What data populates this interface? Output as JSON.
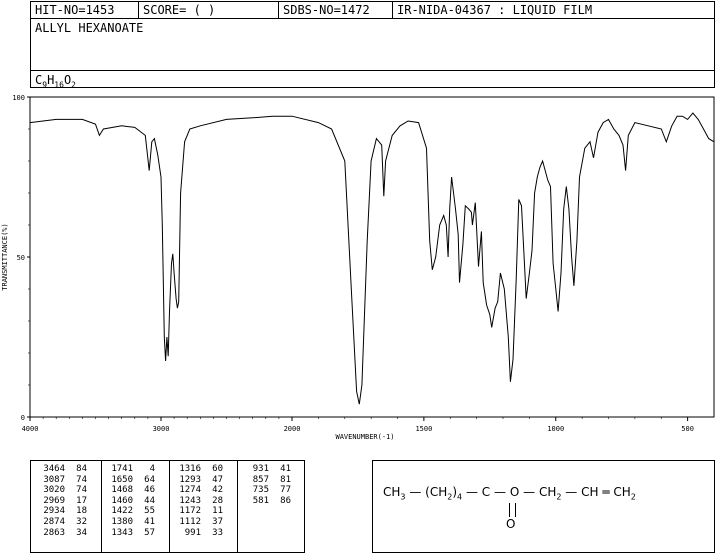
{
  "header": {
    "hit_no": "HIT-NO=1453",
    "score": "SCORE=  (   )",
    "sdbs_no": "SDBS-NO=1472",
    "ir_id": "IR-NIDA-04367 : LIQUID FILM",
    "compound_name": "ALLYL HEXANOATE",
    "formula_base": "C",
    "formula_c": "9",
    "formula_h_label": "H",
    "formula_h": "16",
    "formula_o_label": "O",
    "formula_o": "2"
  },
  "chart_data": {
    "type": "line",
    "xlabel": "WAVENUMBER(-1)",
    "ylabel": "TRANSMITTANCE(%)",
    "xlim": [
      4000,
      400
    ],
    "ylim": [
      0,
      100
    ],
    "x_ticks": [
      "4000",
      "3000",
      "2000",
      "1500",
      "1000",
      "500"
    ],
    "y_ticks": [
      "0",
      "50",
      "100"
    ],
    "series": [
      {
        "points": [
          [
            4000,
            92
          ],
          [
            3800,
            93
          ],
          [
            3600,
            93
          ],
          [
            3500,
            91.5
          ],
          [
            3470,
            88
          ],
          [
            3440,
            90
          ],
          [
            3300,
            91
          ],
          [
            3200,
            90.5
          ],
          [
            3120,
            88
          ],
          [
            3090,
            77
          ],
          [
            3070,
            86
          ],
          [
            3050,
            87
          ],
          [
            3025,
            82
          ],
          [
            3000,
            75
          ],
          [
            2990,
            60
          ],
          [
            2975,
            25
          ],
          [
            2965,
            17.5
          ],
          [
            2955,
            25
          ],
          [
            2945,
            19
          ],
          [
            2935,
            33
          ],
          [
            2920,
            48
          ],
          [
            2910,
            51
          ],
          [
            2900,
            45
          ],
          [
            2885,
            37
          ],
          [
            2875,
            34
          ],
          [
            2865,
            36
          ],
          [
            2850,
            70
          ],
          [
            2820,
            86
          ],
          [
            2780,
            90
          ],
          [
            2700,
            91
          ],
          [
            2500,
            93
          ],
          [
            2300,
            93.5
          ],
          [
            2150,
            94
          ],
          [
            2000,
            94
          ],
          [
            1900,
            92
          ],
          [
            1850,
            90
          ],
          [
            1800,
            80
          ],
          [
            1775,
            40
          ],
          [
            1755,
            8
          ],
          [
            1745,
            4
          ],
          [
            1735,
            10
          ],
          [
            1715,
            55
          ],
          [
            1700,
            80
          ],
          [
            1680,
            87
          ],
          [
            1660,
            85
          ],
          [
            1652,
            69
          ],
          [
            1645,
            80
          ],
          [
            1620,
            88
          ],
          [
            1590,
            91
          ],
          [
            1560,
            92.5
          ],
          [
            1520,
            92
          ],
          [
            1490,
            84
          ],
          [
            1478,
            55
          ],
          [
            1468,
            46
          ],
          [
            1455,
            50
          ],
          [
            1440,
            60
          ],
          [
            1425,
            63
          ],
          [
            1415,
            60
          ],
          [
            1408,
            50
          ],
          [
            1402,
            65
          ],
          [
            1395,
            75
          ],
          [
            1380,
            65
          ],
          [
            1370,
            57
          ],
          [
            1365,
            42
          ],
          [
            1352,
            54
          ],
          [
            1343,
            66
          ],
          [
            1330,
            65
          ],
          [
            1320,
            64
          ],
          [
            1316,
            60
          ],
          [
            1305,
            67
          ],
          [
            1293,
            47
          ],
          [
            1282,
            58
          ],
          [
            1275,
            42
          ],
          [
            1262,
            35
          ],
          [
            1250,
            32
          ],
          [
            1243,
            28
          ],
          [
            1230,
            34
          ],
          [
            1220,
            36
          ],
          [
            1210,
            45
          ],
          [
            1195,
            40
          ],
          [
            1180,
            25
          ],
          [
            1172,
            11
          ],
          [
            1162,
            18
          ],
          [
            1150,
            43
          ],
          [
            1140,
            68
          ],
          [
            1130,
            66
          ],
          [
            1118,
            47
          ],
          [
            1112,
            37
          ],
          [
            1100,
            45
          ],
          [
            1090,
            52
          ],
          [
            1080,
            70
          ],
          [
            1070,
            75
          ],
          [
            1060,
            78
          ],
          [
            1050,
            80
          ],
          [
            1040,
            77
          ],
          [
            1030,
            74
          ],
          [
            1020,
            72
          ],
          [
            1010,
            48
          ],
          [
            1000,
            40
          ],
          [
            991,
            33
          ],
          [
            980,
            45
          ],
          [
            970,
            65
          ],
          [
            960,
            72
          ],
          [
            950,
            65
          ],
          [
            940,
            50
          ],
          [
            931,
            41
          ],
          [
            920,
            55
          ],
          [
            910,
            75
          ],
          [
            890,
            84
          ],
          [
            870,
            86
          ],
          [
            857,
            81
          ],
          [
            840,
            89
          ],
          [
            820,
            92
          ],
          [
            800,
            93
          ],
          [
            780,
            90
          ],
          [
            760,
            88
          ],
          [
            745,
            85
          ],
          [
            735,
            77
          ],
          [
            725,
            88
          ],
          [
            700,
            92
          ],
          [
            650,
            91
          ],
          [
            600,
            90
          ],
          [
            581,
            86
          ],
          [
            560,
            91
          ],
          [
            540,
            94
          ],
          [
            520,
            94
          ],
          [
            500,
            93
          ],
          [
            480,
            95
          ],
          [
            460,
            93
          ],
          [
            440,
            90
          ],
          [
            420,
            87
          ],
          [
            400,
            86
          ]
        ]
      }
    ]
  },
  "peak_table": {
    "columns": [
      [
        [
          "3464",
          "84"
        ],
        [
          "3087",
          "74"
        ],
        [
          "3020",
          "74"
        ],
        [
          "2969",
          "17"
        ],
        [
          "2934",
          "18"
        ],
        [
          "2874",
          "32"
        ],
        [
          "2863",
          "34"
        ]
      ],
      [
        [
          "1741",
          "4"
        ],
        [
          "1650",
          "64"
        ],
        [
          "1468",
          "46"
        ],
        [
          "1460",
          "44"
        ],
        [
          "1422",
          "55"
        ],
        [
          "1380",
          "41"
        ],
        [
          "1343",
          "57"
        ]
      ],
      [
        [
          "1316",
          "60"
        ],
        [
          "1293",
          "47"
        ],
        [
          "1274",
          "42"
        ],
        [
          "1243",
          "28"
        ],
        [
          "1172",
          "11"
        ],
        [
          "1112",
          "37"
        ],
        [
          "991",
          "33"
        ]
      ],
      [
        [
          "931",
          "41"
        ],
        [
          "857",
          "81"
        ],
        [
          "735",
          "77"
        ],
        [
          "581",
          "86"
        ]
      ]
    ]
  },
  "structure": {
    "ch3": "CH",
    "ch3_sub": "3",
    "dash1": "—",
    "group_open": "(",
    "ch2_group": "CH",
    "ch2_group_sub": "2",
    "group_close": ")",
    "group_count": "4",
    "c": "C",
    "o": "O",
    "ch2a": "CH",
    "ch2a_sub": "2",
    "ch": "CH",
    "ch2b": "CH",
    "ch2b_sub": "2",
    "carbonyl_o": "O"
  }
}
